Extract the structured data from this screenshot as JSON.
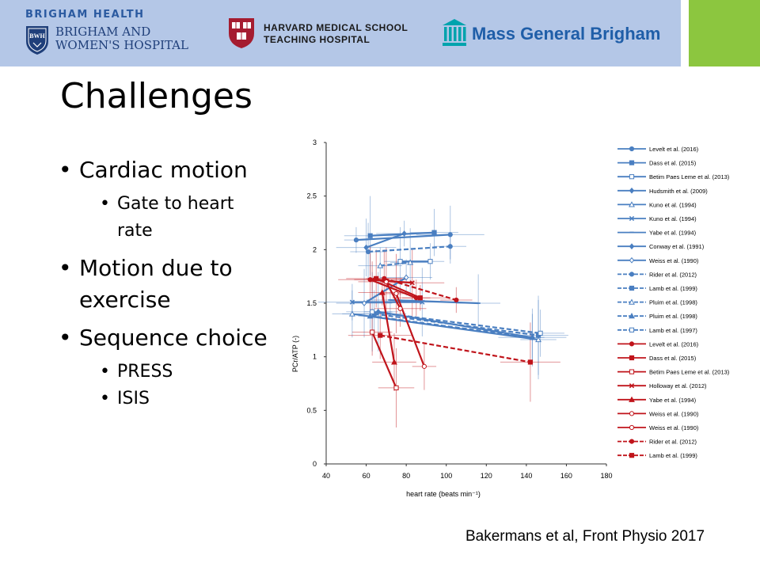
{
  "header": {
    "bwh_health": "BRIGHAM HEALTH",
    "bwh_shield_text": "BWH",
    "bwh_name_line1": "BRIGHAM AND",
    "bwh_name_line2": "WOMEN'S HOSPITAL",
    "hms_line1": "HARVARD MEDICAL SCHOOL",
    "hms_line2": "TEACHING HOSPITAL",
    "mgb_name": "Mass General Brigham",
    "colors": {
      "band": "#b4c7e7",
      "accent": "#8cc63f",
      "bwh_blue": "#1f3f7a",
      "hms_red": "#a51c30",
      "mgb_teal": "#00a3ad",
      "mgb_blue": "#1f5ea8"
    }
  },
  "slide": {
    "title": "Challenges",
    "bullets": [
      {
        "text": "Cardiac motion",
        "subs": [
          "Gate to heart rate"
        ]
      },
      {
        "text": "Motion due to exercise",
        "subs": []
      },
      {
        "text": "Sequence choice",
        "subs": [
          "PRESS",
          "ISIS"
        ]
      }
    ],
    "citation": "Bakermans et al, Front Physio 2017"
  },
  "chart_data": {
    "type": "line",
    "title": "",
    "xlabel": "heart rate (beats min⁻¹)",
    "ylabel": "PCr/ATP (-)",
    "xlim": [
      40,
      180
    ],
    "ylim": [
      0,
      3
    ],
    "xticks": [
      "40",
      "60",
      "80",
      "100",
      "120",
      "140",
      "160",
      "180"
    ],
    "yticks": [
      "0",
      "0.5",
      "1",
      "1.5",
      "2",
      "2.5",
      "3"
    ],
    "grid": false,
    "legend_position": "right",
    "colors": {
      "blue": "#4a7fc1",
      "red": "#c0141b"
    },
    "series": [
      {
        "name": "Levelt et al. (2016)",
        "color": "blue",
        "marker": "circle",
        "dash": false,
        "points": [
          [
            55,
            2.09
          ],
          [
            102,
            2.14
          ]
        ]
      },
      {
        "name": "Dass et al. (2015)",
        "color": "blue",
        "marker": "square",
        "dash": false,
        "points": [
          [
            62,
            2.13
          ],
          [
            94,
            2.16
          ]
        ]
      },
      {
        "name": "Betim Paes Leme et al. (2013)",
        "color": "blue",
        "marker": "square-open",
        "dash": false,
        "points": [
          [
            77,
            1.89
          ],
          [
            92,
            1.89
          ]
        ]
      },
      {
        "name": "Hudsmith et al. (2009)",
        "color": "blue",
        "marker": "diamond",
        "dash": false,
        "points": [
          [
            60,
            2.02
          ],
          [
            79,
            2.15
          ]
        ]
      },
      {
        "name": "Kuno et al. (1994)",
        "color": "blue",
        "marker": "triangle-open",
        "dash": false,
        "points": [
          [
            53,
            1.4
          ],
          [
            146,
            1.16
          ]
        ]
      },
      {
        "name": "Kuno et al. (1994)",
        "color": "blue",
        "marker": "x",
        "dash": false,
        "points": [
          [
            53,
            1.51
          ],
          [
            88,
            1.51
          ]
        ]
      },
      {
        "name": "Yabe et al. (1994)",
        "color": "blue",
        "marker": "dash",
        "dash": false,
        "points": [
          [
            72,
            1.53
          ],
          [
            116,
            1.5
          ]
        ]
      },
      {
        "name": "Conway et al. (1991)",
        "color": "blue",
        "marker": "diamond",
        "dash": false,
        "points": [
          [
            66,
            1.42
          ],
          [
            143,
            1.18
          ]
        ]
      },
      {
        "name": "Weiss et al. (1990)",
        "color": "blue",
        "marker": "diamond-open",
        "dash": false,
        "points": [
          [
            59,
            1.5
          ],
          [
            80,
            1.74
          ]
        ]
      },
      {
        "name": "Rider et al. (2012)",
        "color": "blue",
        "marker": "circle",
        "dash": true,
        "points": [
          [
            61,
            1.98
          ],
          [
            102,
            2.03
          ]
        ]
      },
      {
        "name": "Lamb et al. (1999)",
        "color": "blue",
        "marker": "square",
        "dash": true,
        "points": [
          [
            64,
            1.4
          ],
          [
            146,
            1.2
          ]
        ]
      },
      {
        "name": "Pluim et al. (1998)",
        "color": "blue",
        "marker": "triangle-open",
        "dash": true,
        "points": [
          [
            67,
            1.85
          ],
          [
            82,
            1.88
          ]
        ]
      },
      {
        "name": "Pluim et al. (1998)",
        "color": "blue",
        "marker": "triangle",
        "dash": true,
        "points": [
          [
            62,
            1.38
          ],
          [
            143,
            1.18
          ]
        ]
      },
      {
        "name": "Lamb et al. (1997)",
        "color": "blue",
        "marker": "square-open",
        "dash": true,
        "points": [
          [
            63,
            1.42
          ],
          [
            147,
            1.22
          ]
        ]
      },
      {
        "name": "Levelt et al. (2016)",
        "color": "red",
        "marker": "circle",
        "dash": false,
        "points": [
          [
            62,
            1.72
          ],
          [
            85,
            1.55
          ]
        ]
      },
      {
        "name": "Dass et al. (2015)",
        "color": "red",
        "marker": "square",
        "dash": false,
        "points": [
          [
            65,
            1.73
          ],
          [
            87,
            1.55
          ]
        ]
      },
      {
        "name": "Betim Paes Leme et al. (2013)",
        "color": "red",
        "marker": "square-open",
        "dash": false,
        "points": [
          [
            63,
            1.23
          ],
          [
            75,
            0.71
          ]
        ]
      },
      {
        "name": "Holloway et al. (2012)",
        "color": "red",
        "marker": "x",
        "dash": false,
        "points": [
          [
            63,
            1.72
          ],
          [
            83,
            1.69
          ]
        ]
      },
      {
        "name": "Yabe et al. (1994)",
        "color": "red",
        "marker": "triangle",
        "dash": false,
        "points": [
          [
            68,
            1.6
          ],
          [
            74,
            0.95
          ]
        ]
      },
      {
        "name": "Weiss et al. (1990)",
        "color": "red",
        "marker": "circle-open",
        "dash": false,
        "points": [
          [
            75,
            1.59
          ],
          [
            89,
            0.91
          ]
        ]
      },
      {
        "name": "Weiss et al. (1990)",
        "color": "red",
        "marker": "circle-open",
        "dash": false,
        "points": [
          [
            70,
            1.7
          ],
          [
            77,
            1.45
          ]
        ]
      },
      {
        "name": "Rider et al. (2012)",
        "color": "red",
        "marker": "circle",
        "dash": true,
        "points": [
          [
            69,
            1.73
          ],
          [
            105,
            1.53
          ]
        ]
      },
      {
        "name": "Lamb et al. (1999)",
        "color": "red",
        "marker": "square",
        "dash": true,
        "points": [
          [
            67,
            1.2
          ],
          [
            142,
            0.95
          ]
        ]
      }
    ]
  }
}
